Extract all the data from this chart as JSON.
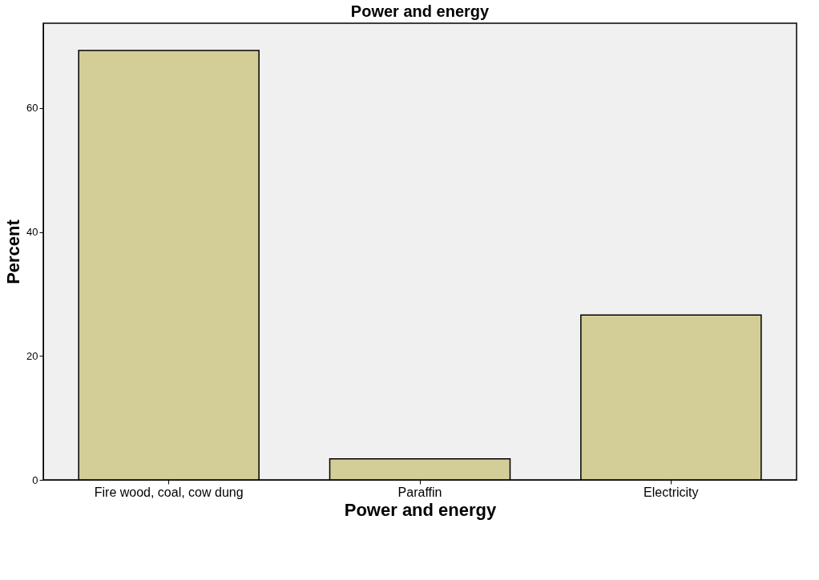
{
  "chart_data": {
    "type": "bar",
    "title": "Power and energy",
    "xlabel": "Power and energy",
    "ylabel": "Percent",
    "categories": [
      "Fire wood, coal, cow dung",
      "Paraffin",
      "Electricity"
    ],
    "values": [
      69.3,
      3.4,
      26.6
    ],
    "color": "#d3ce97",
    "ylim": [
      0,
      73.7
    ],
    "yticks": [
      0,
      20,
      40,
      60
    ],
    "grid": false
  }
}
